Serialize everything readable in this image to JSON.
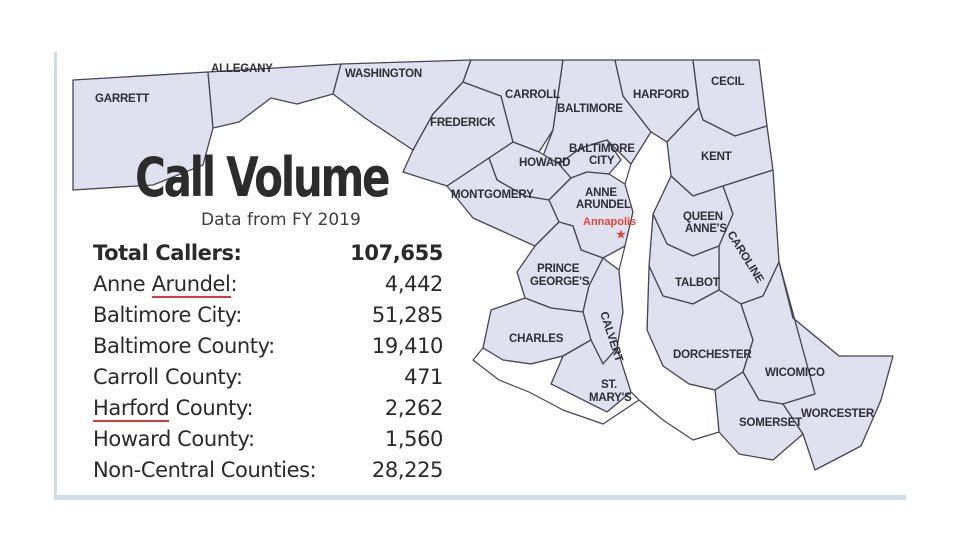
{
  "map": {
    "counties": [
      {
        "id": "garrett",
        "label": "GARRETT"
      },
      {
        "id": "allegany",
        "label": "ALLEGANY"
      },
      {
        "id": "washington",
        "label": "WASHINGTON"
      },
      {
        "id": "frederick",
        "label": "FREDERICK"
      },
      {
        "id": "carroll",
        "label": "CARROLL"
      },
      {
        "id": "baltimore",
        "label": "BALTIMORE"
      },
      {
        "id": "harford",
        "label": "HARFORD"
      },
      {
        "id": "cecil",
        "label": "CECIL"
      },
      {
        "id": "howard",
        "label": "HOWARD"
      },
      {
        "id": "baltimore-city",
        "label_lines": [
          "BALTIMORE",
          "CITY"
        ]
      },
      {
        "id": "kent",
        "label": "KENT"
      },
      {
        "id": "montgomery",
        "label": "MONTGOMERY"
      },
      {
        "id": "anne-arundel",
        "label_lines": [
          "ANNE",
          "ARUNDEL"
        ]
      },
      {
        "id": "queen-annes",
        "label_lines": [
          "QUEEN",
          "ANNE'S"
        ]
      },
      {
        "id": "caroline",
        "label": "CAROLINE"
      },
      {
        "id": "prince-georges",
        "label_lines": [
          "PRINCE",
          "GEORGE'S"
        ]
      },
      {
        "id": "talbot",
        "label": "TALBOT"
      },
      {
        "id": "calvert",
        "label": "CALVERT"
      },
      {
        "id": "charles",
        "label": "CHARLES"
      },
      {
        "id": "dorchester",
        "label": "DORCHESTER"
      },
      {
        "id": "st-marys",
        "label_lines": [
          "ST.",
          "MARY'S"
        ]
      },
      {
        "id": "wicomico",
        "label": "WICOMICO"
      },
      {
        "id": "somerset",
        "label": "SOMERSET"
      },
      {
        "id": "worcester",
        "label": "WORCESTER"
      }
    ],
    "capital": {
      "label": "Annapolis",
      "marker": "star-icon",
      "color": "#e0453a"
    },
    "fill_color": "#dfe1ee",
    "border_color": "#454555"
  },
  "overlay": {
    "title": "Call Volume",
    "subtitle": "Data from FY 2019",
    "total": {
      "label": "Total Callers:",
      "value": "107,655"
    },
    "rows": [
      {
        "label": "Anne Arundel:",
        "value": "4,442"
      },
      {
        "label": "Baltimore City:",
        "value": "51,285"
      },
      {
        "label": "Baltimore County:",
        "value": "19,410"
      },
      {
        "label": "Carroll County:",
        "value": "471"
      },
      {
        "label": "Harford County:",
        "value": "2,262"
      },
      {
        "label": "Howard County:",
        "value": "1,560"
      },
      {
        "label": "Non-Central Counties:",
        "value": "28,225"
      }
    ],
    "underline_color": "#d8393a"
  }
}
